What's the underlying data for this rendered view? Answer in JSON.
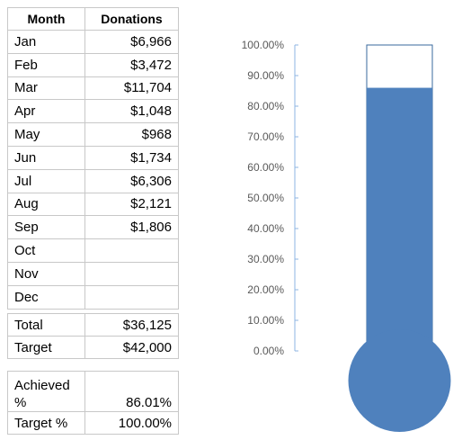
{
  "table": {
    "headers": [
      "Month",
      "Donations"
    ],
    "rows": [
      {
        "month": "Jan",
        "donation": "$6,966"
      },
      {
        "month": "Feb",
        "donation": "$3,472"
      },
      {
        "month": "Mar",
        "donation": "$11,704"
      },
      {
        "month": "Apr",
        "donation": "$1,048"
      },
      {
        "month": "May",
        "donation": "$968"
      },
      {
        "month": "Jun",
        "donation": "$1,734"
      },
      {
        "month": "Jul",
        "donation": "$6,306"
      },
      {
        "month": "Aug",
        "donation": "$2,121"
      },
      {
        "month": "Sep",
        "donation": "$1,806"
      },
      {
        "month": "Oct",
        "donation": ""
      },
      {
        "month": "Nov",
        "donation": ""
      },
      {
        "month": "Dec",
        "donation": ""
      }
    ]
  },
  "totals": {
    "total_label": "Total",
    "total_value": "$36,125",
    "target_label": "Target",
    "target_value": "$42,000"
  },
  "percentages": {
    "achieved_label": "Achieved %",
    "achieved_value": "86.01%",
    "target_label": "Target %",
    "target_value": "100.00%"
  },
  "chart_data": {
    "type": "bar",
    "series": [
      {
        "values": [
          86.01
        ]
      }
    ],
    "ylim": [
      0,
      100
    ],
    "ytick_labels": [
      "0.00%",
      "10.00%",
      "20.00%",
      "30.00%",
      "40.00%",
      "50.00%",
      "60.00%",
      "70.00%",
      "80.00%",
      "90.00%",
      "100.00%"
    ],
    "colors": {
      "fill": "#4f81bd",
      "outline": "#3a6a9e",
      "axis": "#8eb4e3"
    }
  }
}
